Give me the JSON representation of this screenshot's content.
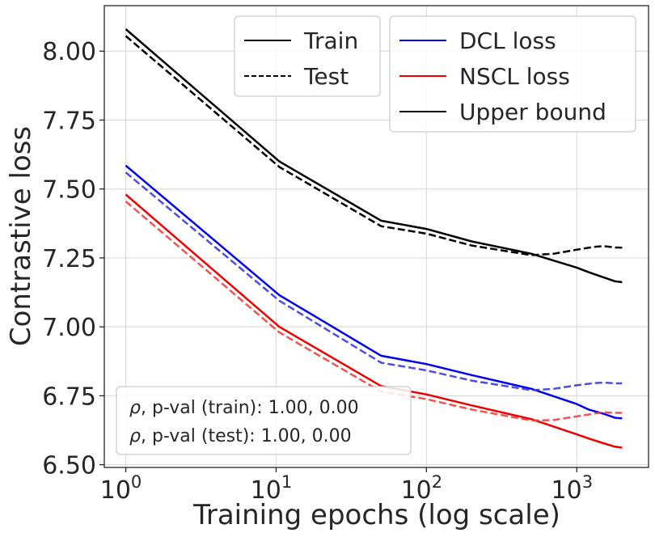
{
  "chart_data": {
    "type": "line",
    "xlabel": "Training epochs (log scale)",
    "ylabel": "Contrastive loss",
    "xscale": "log",
    "xlim": [
      0.72,
      3000
    ],
    "ylim": [
      6.49,
      8.165
    ],
    "grid": true,
    "x_ticks": [
      {
        "value": 1,
        "base": "10",
        "exp": "0"
      },
      {
        "value": 10,
        "base": "10",
        "exp": "1"
      },
      {
        "value": 100,
        "base": "10",
        "exp": "2"
      },
      {
        "value": 1000,
        "base": "10",
        "exp": "3"
      }
    ],
    "y_ticks": [
      {
        "value": 6.5,
        "label": "6.50"
      },
      {
        "value": 6.75,
        "label": "6.75"
      },
      {
        "value": 7.0,
        "label": "7.00"
      },
      {
        "value": 7.25,
        "label": "7.25"
      },
      {
        "value": 7.5,
        "label": "7.50"
      },
      {
        "value": 7.75,
        "label": "7.75"
      },
      {
        "value": 8.0,
        "label": "8.00"
      }
    ],
    "series": [
      {
        "id": "upper_train",
        "color": "#000000",
        "dash": false,
        "opacity": 1.0,
        "x": [
          1,
          10.5,
          50,
          100,
          200,
          500,
          1000,
          1200,
          1500,
          1800,
          2000
        ],
        "y": [
          8.08,
          7.6,
          7.385,
          7.355,
          7.31,
          7.265,
          7.215,
          7.198,
          7.18,
          7.165,
          7.162
        ]
      },
      {
        "id": "upper_test",
        "color": "#000000",
        "dash": true,
        "opacity": 1.0,
        "x": [
          1,
          10.5,
          50,
          100,
          200,
          500,
          700,
          1000,
          1300,
          1500,
          1800,
          2000
        ],
        "y": [
          8.055,
          7.58,
          7.365,
          7.338,
          7.295,
          7.26,
          7.265,
          7.28,
          7.29,
          7.293,
          7.288,
          7.287
        ]
      },
      {
        "id": "dcl_train",
        "color": "#0000ee",
        "dash": false,
        "opacity": 1.0,
        "x": [
          1,
          10.5,
          50,
          100,
          200,
          500,
          1000,
          1200,
          1500,
          1800,
          2000
        ],
        "y": [
          7.585,
          7.115,
          6.895,
          6.865,
          6.825,
          6.775,
          6.72,
          6.7,
          6.685,
          6.67,
          6.668
        ]
      },
      {
        "id": "dcl_test",
        "color": "#3a3ae0",
        "dash": true,
        "opacity": 0.9,
        "x": [
          1,
          10.5,
          50,
          100,
          200,
          500,
          700,
          1000,
          1300,
          1500,
          1800,
          2000
        ],
        "y": [
          7.56,
          7.095,
          6.87,
          6.842,
          6.805,
          6.77,
          6.775,
          6.788,
          6.796,
          6.798,
          6.795,
          6.795
        ]
      },
      {
        "id": "nscl_train",
        "color": "#ee0000",
        "dash": false,
        "opacity": 1.0,
        "x": [
          1,
          10.5,
          50,
          100,
          200,
          500,
          1000,
          1200,
          1500,
          1800,
          2000
        ],
        "y": [
          7.48,
          7.0,
          6.785,
          6.755,
          6.715,
          6.665,
          6.61,
          6.595,
          6.578,
          6.565,
          6.562
        ]
      },
      {
        "id": "nscl_test",
        "color": "#f04040",
        "dash": true,
        "opacity": 0.9,
        "x": [
          1,
          10.5,
          50,
          100,
          200,
          500,
          700,
          1000,
          1300,
          1500,
          1800,
          2000
        ],
        "y": [
          7.455,
          6.98,
          6.765,
          6.738,
          6.7,
          6.66,
          6.662,
          6.675,
          6.685,
          6.69,
          6.688,
          6.688
        ]
      }
    ],
    "legend_left": {
      "placement": "top-center",
      "entries": [
        {
          "label": "Train",
          "color": "#000000",
          "dash": false
        },
        {
          "label": "Test",
          "color": "#000000",
          "dash": true
        }
      ]
    },
    "legend_right": {
      "placement": "top-right",
      "entries": [
        {
          "label": "DCL loss",
          "color": "#0000ee",
          "dash": false
        },
        {
          "label": "NSCL loss",
          "color": "#ee0000",
          "dash": false
        },
        {
          "label": "Upper bound",
          "color": "#000000",
          "dash": false
        }
      ]
    },
    "annotation": {
      "placement": "bottom-left",
      "lines": [
        {
          "symbol": "ρ",
          "text": ", p-val (train):  1.00, 0.00"
        },
        {
          "symbol": "ρ",
          "text": ", p-val (test):  1.00, 0.00"
        }
      ]
    }
  }
}
